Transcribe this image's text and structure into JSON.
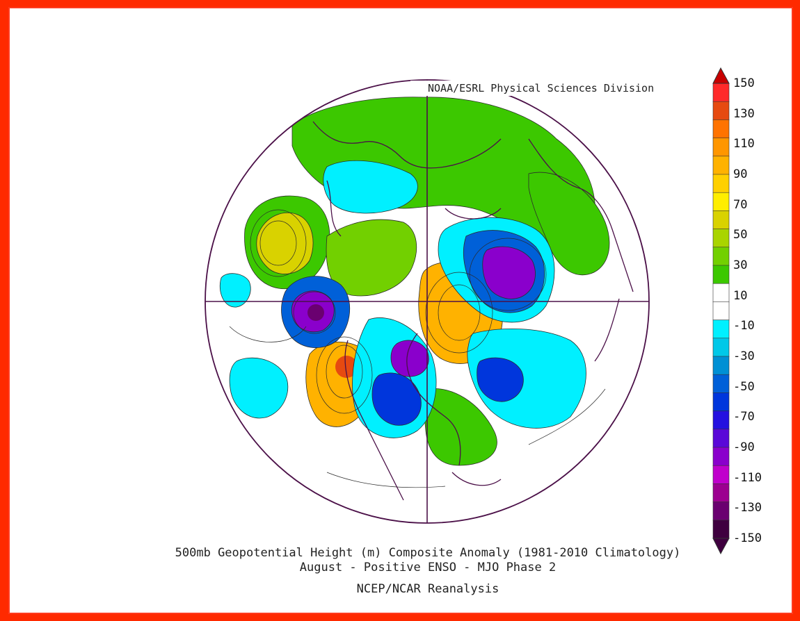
{
  "credit": "NOAA/ESRL Physical Sciences Division",
  "caption": {
    "line1": "500mb Geopotential Height (m) Composite Anomaly (1981-2010 Climatology)",
    "line2": "August - Positive ENSO - MJO Phase 2",
    "line3": "NCEP/NCAR Reanalysis"
  },
  "colorbar": {
    "labels": [
      "150",
      "130",
      "110",
      "90",
      "70",
      "50",
      "30",
      "10",
      "-10",
      "-30",
      "-50",
      "-70",
      "-90",
      "-110",
      "-130",
      "-150"
    ],
    "colors": [
      "#ff2a2a",
      "#e64a10",
      "#ff7300",
      "#ff9600",
      "#ffb200",
      "#ffd000",
      "#ffee00",
      "#d9d200",
      "#a9d400",
      "#72d000",
      "#3cc800",
      "#ffffff",
      "#ffffff",
      "#00f0ff",
      "#00c8e8",
      "#0090d4",
      "#0060d8",
      "#0036dc",
      "#2410e0",
      "#5a08d8",
      "#8a00cc",
      "#c000cc",
      "#9c0090",
      "#6a0070",
      "#3f003f"
    ],
    "top_arrow_color": "#c80000",
    "bottom_arrow_color": "#3f003f"
  },
  "map": {
    "projection": "polar stereographic",
    "background": "#ffffff",
    "border_color": "#4b1048"
  }
}
